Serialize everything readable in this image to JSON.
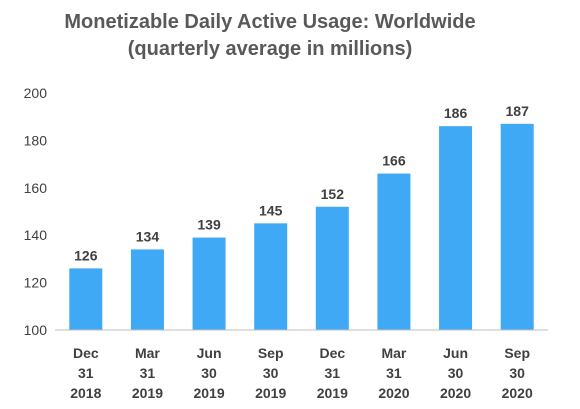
{
  "chart_data": {
    "type": "bar",
    "title": "Monetizable Daily Active Usage: Worldwide",
    "subtitle": "(quarterly average in millions)",
    "categories": [
      [
        "Dec",
        "31",
        "2018"
      ],
      [
        "Mar",
        "31",
        "2019"
      ],
      [
        "Jun",
        "30",
        "2019"
      ],
      [
        "Sep",
        "30",
        "2019"
      ],
      [
        "Dec",
        "31",
        "2019"
      ],
      [
        "Mar",
        "31",
        "2020"
      ],
      [
        "Jun",
        "30",
        "2020"
      ],
      [
        "Sep",
        "30",
        "2020"
      ]
    ],
    "values": [
      126,
      134,
      139,
      145,
      152,
      166,
      186,
      187
    ],
    "ylim": [
      100,
      200
    ],
    "yticks": [
      100,
      120,
      140,
      160,
      180,
      200
    ],
    "xlabel": "",
    "ylabel": "",
    "grid": false,
    "bar_color": "#3fa9f5",
    "axis_color": "#bfbfbf",
    "text_color": "#404040",
    "title_color": "#595959"
  }
}
